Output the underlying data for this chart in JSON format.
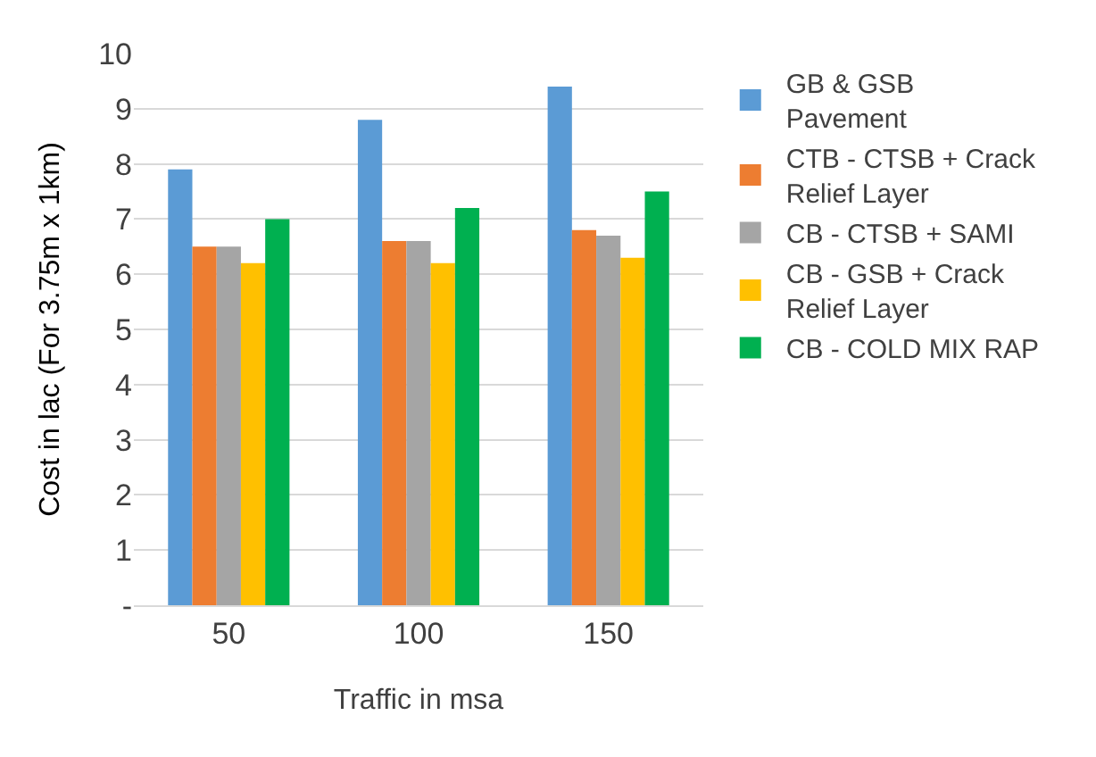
{
  "chart_data": {
    "type": "bar",
    "xlabel": "Traffic in msa",
    "ylabel": "Cost in lac (For 3.75m x 1km)",
    "categories": [
      "50",
      "100",
      "150"
    ],
    "series": [
      {
        "name": "GB & GSB Pavement",
        "color": "#5b9bd5",
        "values": [
          7.9,
          8.8,
          9.4
        ]
      },
      {
        "name": "CTB - CTSB + Crack Relief Layer",
        "color": "#ed7d31",
        "values": [
          6.5,
          6.6,
          6.8
        ]
      },
      {
        "name": "CB - CTSB + SAMI",
        "color": "#a5a5a5",
        "values": [
          6.5,
          6.6,
          6.7
        ]
      },
      {
        "name": "CB - GSB + Crack Relief Layer",
        "color": "#ffc000",
        "values": [
          6.2,
          6.2,
          6.3
        ]
      },
      {
        "name": "CB - COLD MIX RAP",
        "color": "#00b050",
        "values": [
          7.0,
          7.2,
          7.5
        ]
      }
    ],
    "ylim": [
      0,
      10
    ],
    "yticks": [
      {
        "value": 0,
        "label": "-"
      },
      1,
      2,
      3,
      4,
      5,
      6,
      7,
      8,
      9,
      10
    ],
    "grid": "y",
    "legend": "right"
  }
}
